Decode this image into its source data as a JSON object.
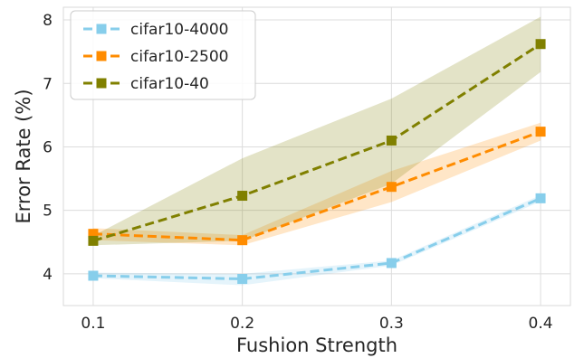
{
  "chart_data": {
    "type": "line",
    "xlabel": "Fushion Strength",
    "ylabel": "Error Rate (%)",
    "x": [
      0.1,
      0.2,
      0.3,
      0.4
    ],
    "x_tick_labels": [
      "0.1",
      "0.2",
      "0.3",
      "0.4"
    ],
    "xlim": [
      0.08,
      0.42
    ],
    "ylim": [
      3.5,
      8.2
    ],
    "y_ticks": [
      4,
      5,
      6,
      7,
      8
    ],
    "y_tick_labels": [
      "4",
      "5",
      "6",
      "7",
      "8"
    ],
    "grid": true,
    "legend_position": "top-left",
    "series": [
      {
        "name": "cifar10-4000",
        "color": "#87ceeb",
        "values": [
          3.97,
          3.92,
          4.17,
          5.19
        ],
        "band_low": [
          3.93,
          3.82,
          4.13,
          5.14
        ],
        "band_high": [
          4.02,
          4.0,
          4.21,
          5.24
        ]
      },
      {
        "name": "cifar10-2500",
        "color": "#ff8c00",
        "values": [
          4.63,
          4.53,
          5.37,
          6.24
        ],
        "band_low": [
          4.53,
          4.45,
          5.13,
          6.1
        ],
        "band_high": [
          4.72,
          4.61,
          5.62,
          6.38
        ]
      },
      {
        "name": "cifar10-40",
        "color": "#808000",
        "values": [
          4.52,
          5.23,
          6.1,
          7.62
        ],
        "band_low": [
          4.45,
          4.52,
          5.42,
          7.18
        ],
        "band_high": [
          4.6,
          5.82,
          6.76,
          8.05
        ]
      }
    ]
  }
}
